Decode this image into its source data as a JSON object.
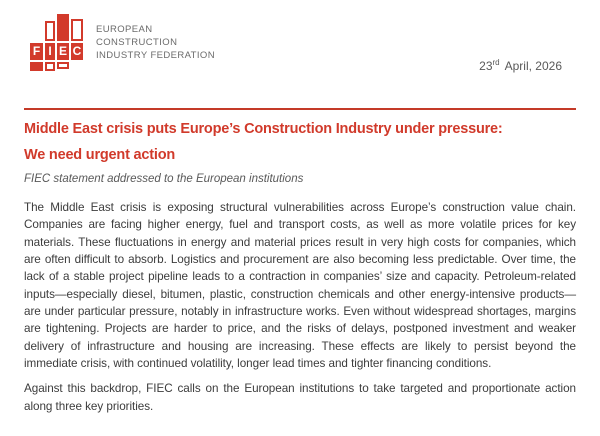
{
  "document": {
    "header": {
      "logo": {
        "letters": [
          "F",
          "I",
          "E",
          "C"
        ],
        "org_name_lines": [
          "EUROPEAN",
          "CONSTRUCTION",
          "INDUSTRY FEDERATION"
        ]
      },
      "date": {
        "day": "23",
        "ordinal": "rd",
        "rest": "April, 2026",
        "full": "23rd April, 2026"
      }
    },
    "title": {
      "line1": "Middle East crisis puts Europe’s Construction Industry under pressure:",
      "line2": "We need urgent action"
    },
    "subtitle": "FIEC statement addressed to the European institutions",
    "body": {
      "paragraph1": "The Middle East crisis is exposing structural vulnerabilities across Europe’s construction value chain. Companies are facing higher energy, fuel and transport costs, as well as more volatile prices for key materials. These fluctuations in energy and material prices result in very high costs for companies, which are often difficult to absorb. Logistics and procurement are also becoming less predictable. Over time, the lack of a stable project pipeline leads to a contraction in companies’ size and capacity. Petroleum-related inputs—especially diesel, bitumen, plastic, construction chemicals and other energy-intensive products—are under particular pressure, notably in infrastructure works. Even without widespread shortages, margins are tightening. Projects are harder to price, and the risks of delays, postponed investment and weaker delivery of infrastructure and housing are increasing. These effects are likely to persist beyond the immediate crisis, with continued volatility, longer lead times and tighter financing conditions.",
      "paragraph2": "Against this backdrop, FIEC calls on the European institutions to take targeted and proportionate action along three key priorities."
    }
  },
  "colors": {
    "brand_red": "#D23A2B",
    "rule_red": "#C43A28",
    "title_red": "#D13A2B",
    "org_text_gray": "#6B6B6B",
    "date_gray": "#595959",
    "body_text": "#3C3C3C"
  }
}
